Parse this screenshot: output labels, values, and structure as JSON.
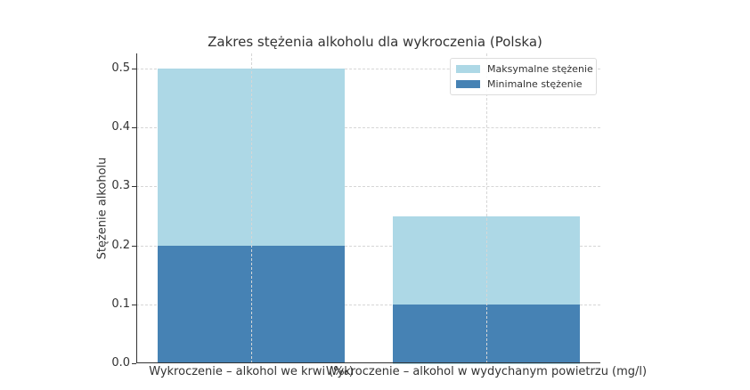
{
  "chart_data": {
    "type": "bar",
    "stacked": "overlay",
    "title": "Zakres stężenia alkoholu dla wykroczenia (Polska)",
    "xlabel": "",
    "ylabel": "Stężenie alkoholu",
    "ylim": [
      0,
      0.52
    ],
    "yticks": [
      "0.0",
      "0.1",
      "0.2",
      "0.3",
      "0.4",
      "0.5"
    ],
    "categories": [
      "Wykroczenie – alkohol we krwi (‰)",
      "Wykroczenie – alkohol w wydychanym powietrzu (mg/l)"
    ],
    "series": [
      {
        "name": "Maksymalne stężenie",
        "color": "#add8e6",
        "values": [
          0.5,
          0.25
        ]
      },
      {
        "name": "Minimalne stężenie",
        "color": "#4682b4",
        "values": [
          0.2,
          0.1
        ]
      }
    ],
    "grid": true,
    "legend_position": "upper right"
  }
}
